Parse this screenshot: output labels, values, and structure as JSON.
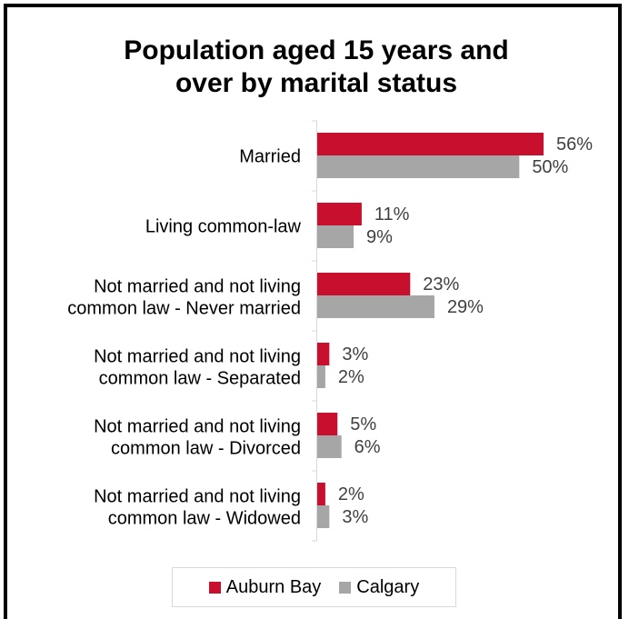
{
  "chart_data": {
    "type": "bar",
    "orientation": "horizontal",
    "title_lines": [
      "Population aged 15 years and",
      "over by marital status"
    ],
    "categories": [
      [
        "Married"
      ],
      [
        "Living common-law"
      ],
      [
        "Not married and not living",
        "common law - Never married"
      ],
      [
        "Not married and not living",
        "common law - Separated"
      ],
      [
        "Not married and not living",
        "common law - Divorced"
      ],
      [
        "Not married and not living",
        "common law - Widowed"
      ]
    ],
    "series": [
      {
        "name": "Auburn Bay",
        "color": "#c8102e",
        "values": [
          56,
          11,
          23,
          3,
          5,
          2
        ],
        "labels": [
          "56%",
          "11%",
          "23%",
          "3%",
          "5%",
          "2%"
        ]
      },
      {
        "name": "Calgary",
        "color": "#a6a6a6",
        "values": [
          50,
          9,
          29,
          2,
          6,
          3
        ],
        "labels": [
          "50%",
          "9%",
          "29%",
          "2%",
          "6%",
          "3%"
        ]
      }
    ],
    "xlim": [
      0,
      100
    ],
    "grid": false,
    "legend_position": "bottom"
  }
}
